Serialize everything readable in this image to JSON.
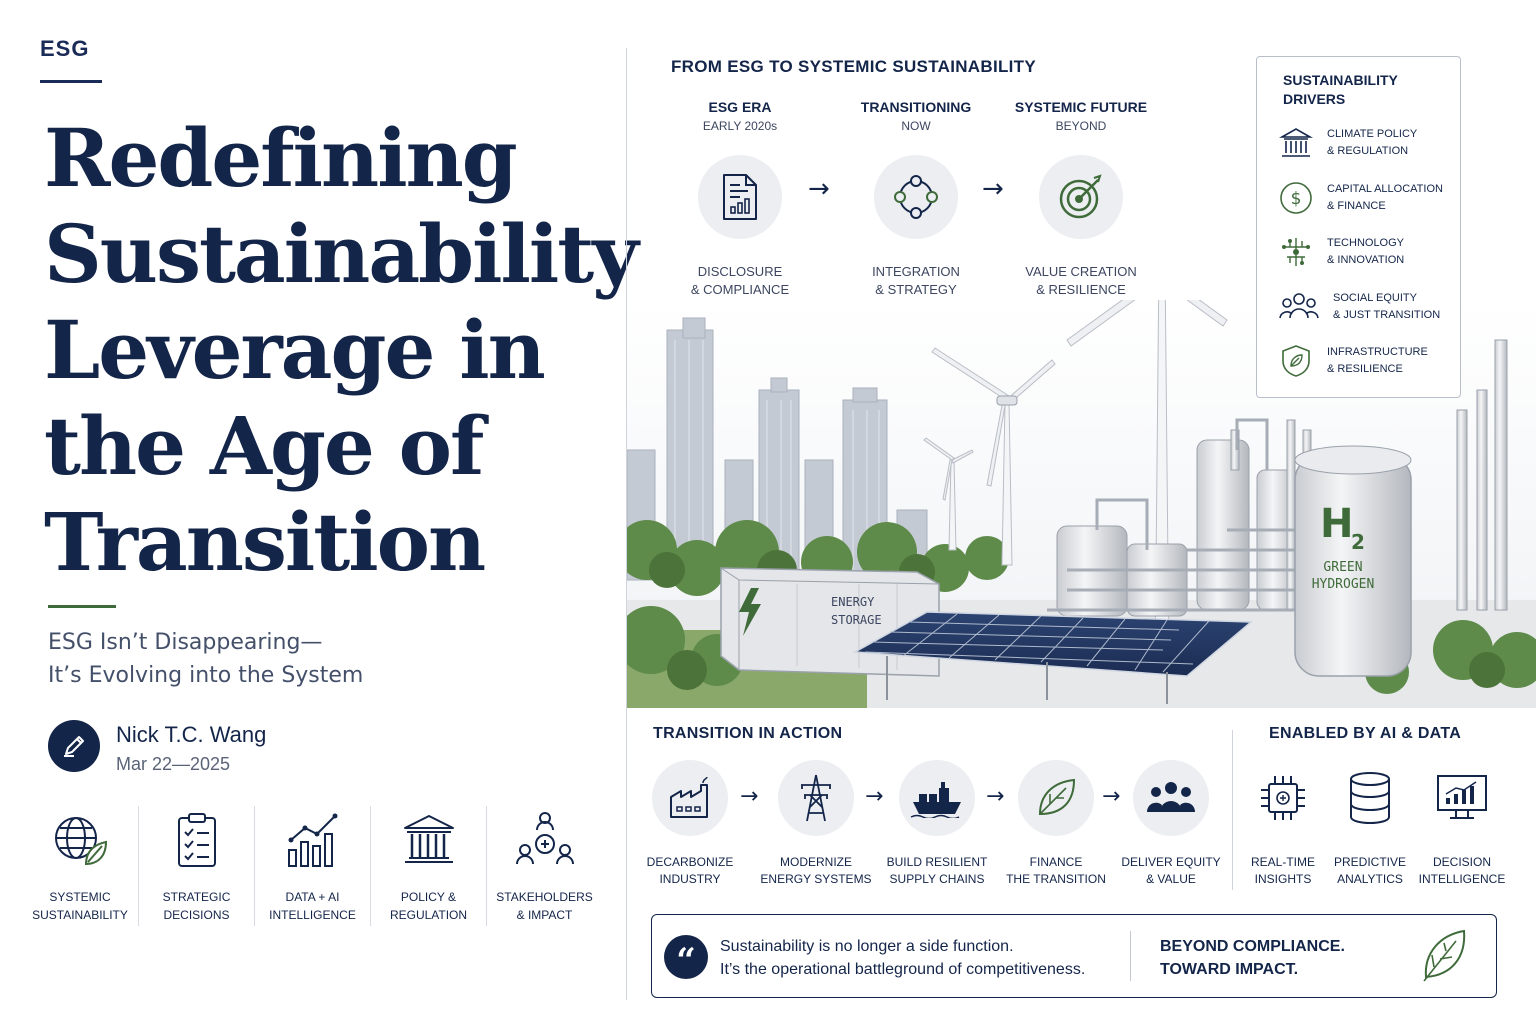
{
  "header": {
    "tag": "ESG"
  },
  "hero": {
    "title_lines": [
      "Redefining",
      "Sustainability",
      "Leverage in",
      "the Age of",
      "Transition"
    ],
    "subtitle_lines": [
      "ESG Isn’t Disappearing—",
      "It’s Evolving into the System"
    ]
  },
  "author": {
    "name": "Nick T.C. Wang",
    "date": "Mar 22—2025",
    "icon": "pen-icon"
  },
  "categories": [
    {
      "label": "SYSTEMIC\nSUSTAINABILITY",
      "icon": "globe-leaf-icon"
    },
    {
      "label": "STRATEGIC\nDECISIONS",
      "icon": "clipboard-checklist-icon"
    },
    {
      "label": "DATA + AI\nINTELLIGENCE",
      "icon": "bar-chart-icon"
    },
    {
      "label": "POLICY &\nREGULATION",
      "icon": "institution-icon"
    },
    {
      "label": "STAKEHOLDERS\n& IMPACT",
      "icon": "stakeholders-icon"
    }
  ],
  "evolution": {
    "title": "FROM ESG TO SYSTEMIC SUSTAINABILITY",
    "stages": [
      {
        "head": "ESG ERA",
        "sub": "EARLY 2020s",
        "foot": "DISCLOSURE\n& COMPLIANCE",
        "icon": "report-document-icon"
      },
      {
        "head": "TRANSITIONING",
        "sub": "NOW",
        "foot": "INTEGRATION\n& STRATEGY",
        "icon": "network-cycle-icon"
      },
      {
        "head": "SYSTEMIC FUTURE",
        "sub": "BEYOND",
        "foot": "VALUE CREATION\n& RESILIENCE",
        "icon": "target-icon"
      }
    ]
  },
  "drivers": {
    "title": "SUSTAINABILITY\nDRIVERS",
    "items": [
      {
        "label": "CLIMATE POLICY\n& REGULATION",
        "icon": "government-building-icon"
      },
      {
        "label": "CAPITAL ALLOCATION\n& FINANCE",
        "icon": "dollar-circle-icon"
      },
      {
        "label": "TECHNOLOGY\n& INNOVATION",
        "icon": "circuit-icon"
      },
      {
        "label": "SOCIAL EQUITY\n& JUST TRANSITION",
        "icon": "people-group-icon"
      },
      {
        "label": "INFRASTRUCTURE\n& RESILIENCE",
        "icon": "shield-leaf-icon"
      }
    ]
  },
  "scene": {
    "storage_label_1": "ENERGY",
    "storage_label_2": "STORAGE",
    "hydrogen_formula": "H",
    "hydrogen_subscript": "2",
    "hydrogen_label_1": "GREEN",
    "hydrogen_label_2": "HYDROGEN"
  },
  "action": {
    "title": "TRANSITION IN ACTION",
    "items": [
      {
        "label": "DECARBONIZE\nINDUSTRY",
        "icon": "factory-icon"
      },
      {
        "label": "MODERNIZE\nENERGY SYSTEMS",
        "icon": "power-pylon-icon"
      },
      {
        "label": "BUILD RESILIENT\nSUPPLY CHAINS",
        "icon": "cargo-ship-icon"
      },
      {
        "label": "FINANCE\nTHE TRANSITION",
        "icon": "leaf-icon"
      },
      {
        "label": "DELIVER EQUITY\n& VALUE",
        "icon": "people-icon"
      }
    ]
  },
  "ai": {
    "title": "ENABLED BY AI & DATA",
    "items": [
      {
        "label": "REAL-TIME\nINSIGHTS",
        "icon": "chip-icon"
      },
      {
        "label": "PREDICTIVE\nANALYTICS",
        "icon": "database-icon"
      },
      {
        "label": "DECISION\nINTELLIGENCE",
        "icon": "monitor-chart-icon"
      }
    ]
  },
  "quote": {
    "mark": "“",
    "line1": "Sustainability is no longer a side function.",
    "line2": "It’s the operational battleground of competitiveness.",
    "tagline1": "BEYOND COMPLIANCE.",
    "tagline2": "TOWARD IMPACT."
  },
  "colors": {
    "navy": "#14254a",
    "green": "#3f6b3a",
    "circle_bg": "#eceef1"
  }
}
